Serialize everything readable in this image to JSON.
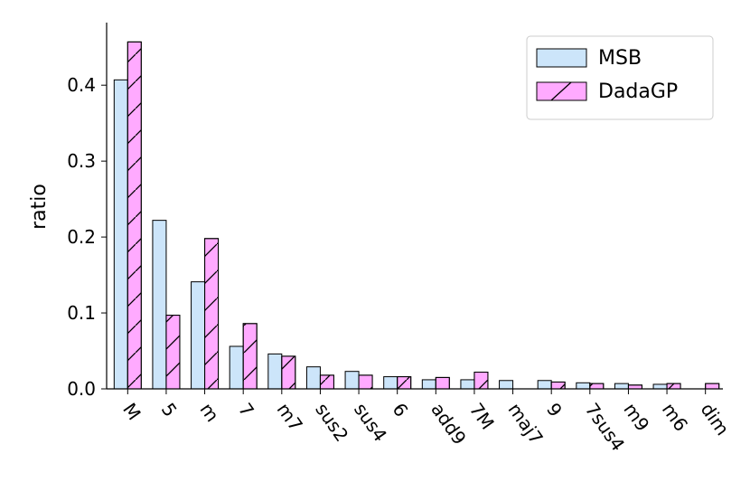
{
  "chart_data": {
    "type": "bar",
    "title": "",
    "xlabel": "",
    "ylabel": "ratio",
    "ylim": [
      0,
      0.48
    ],
    "yticks": [
      "0.0",
      "0.1",
      "0.2",
      "0.3",
      "0.4"
    ],
    "grid": false,
    "legend_position": "top-right",
    "categories": [
      "M",
      "5",
      "m",
      "7",
      "m7",
      "sus2",
      "sus4",
      "6",
      "add9",
      "7M",
      "maj7",
      "9",
      "7sus4",
      "m9",
      "m6",
      "dim"
    ],
    "series": [
      {
        "name": "MSB",
        "color": "#cce5fa",
        "hatch": "none",
        "values": [
          0.407,
          0.222,
          0.141,
          0.056,
          0.046,
          0.029,
          0.023,
          0.016,
          0.012,
          0.012,
          0.011,
          0.011,
          0.008,
          0.007,
          0.006,
          0.0
        ]
      },
      {
        "name": "DadaGP",
        "color": "#ffaaff",
        "hatch": "diagonal",
        "values": [
          0.457,
          0.097,
          0.198,
          0.086,
          0.043,
          0.018,
          0.018,
          0.016,
          0.015,
          0.022,
          0.0,
          0.009,
          0.007,
          0.005,
          0.007,
          0.007
        ]
      }
    ]
  }
}
